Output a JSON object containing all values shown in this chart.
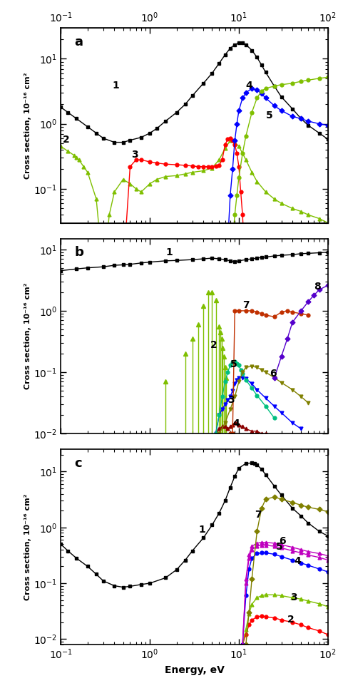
{
  "xlabel": "Energy, eV",
  "ylabel": "Cross section, 10⁻¹⁶ cm²",
  "xlim": [
    0.1,
    100
  ],
  "panel_a": {
    "ylim": [
      0.03,
      30
    ],
    "label": "a",
    "series": [
      {
        "id": "1",
        "color": "black",
        "marker": "s",
        "x": [
          0.1,
          0.12,
          0.15,
          0.2,
          0.25,
          0.3,
          0.4,
          0.5,
          0.6,
          0.8,
          1.0,
          1.2,
          1.5,
          2.0,
          2.5,
          3.0,
          4.0,
          5.0,
          6.0,
          7.0,
          8.0,
          9.0,
          10.0,
          11.0,
          12.0,
          14.0,
          16.0,
          18.0,
          20.0,
          25.0,
          30.0,
          40.0,
          50.0,
          60.0,
          80.0,
          100.0
        ],
        "y": [
          1.8,
          1.5,
          1.2,
          0.9,
          0.72,
          0.6,
          0.52,
          0.52,
          0.56,
          0.62,
          0.72,
          0.85,
          1.1,
          1.5,
          2.0,
          2.7,
          4.2,
          6.0,
          8.5,
          11.5,
          14.5,
          16.5,
          17.5,
          17.5,
          16.5,
          13.5,
          10.5,
          8.0,
          6.2,
          3.8,
          2.6,
          1.7,
          1.2,
          0.95,
          0.72,
          0.58
        ]
      },
      {
        "id": "2",
        "color": "#7FBF00",
        "marker": "^",
        "x": [
          0.1,
          0.12,
          0.14,
          0.15,
          0.16,
          0.18,
          0.2,
          0.25,
          0.3,
          0.35,
          0.4,
          0.5,
          0.6,
          0.7,
          0.8,
          1.0,
          1.2,
          1.5,
          2.0,
          2.5,
          3.0,
          4.0,
          5.0,
          6.0,
          7.0,
          8.0,
          9.0,
          10.0,
          12.0,
          14.0,
          16.0,
          20.0,
          25.0,
          30.0,
          40.0,
          50.0,
          60.0,
          80.0,
          100.0
        ],
        "y": [
          0.45,
          0.38,
          0.33,
          0.3,
          0.28,
          0.22,
          0.18,
          0.07,
          0.005,
          0.04,
          0.09,
          0.14,
          0.12,
          0.1,
          0.09,
          0.12,
          0.14,
          0.155,
          0.16,
          0.17,
          0.18,
          0.19,
          0.21,
          0.28,
          0.42,
          0.55,
          0.52,
          0.45,
          0.28,
          0.18,
          0.13,
          0.09,
          0.07,
          0.06,
          0.05,
          0.045,
          0.04,
          0.035,
          0.03
        ]
      },
      {
        "id": "3",
        "color": "red",
        "marker": "o",
        "x": [
          0.5,
          0.6,
          0.7,
          0.8,
          1.0,
          1.2,
          1.5,
          2.0,
          2.5,
          3.0,
          3.5,
          4.0,
          4.5,
          5.0,
          5.5,
          6.0,
          6.5,
          7.0,
          7.5,
          8.0,
          8.5,
          9.0,
          9.5,
          10.0,
          10.5,
          11.0,
          11.5,
          12.0
        ],
        "y": [
          0.005,
          0.22,
          0.28,
          0.28,
          0.26,
          0.25,
          0.24,
          0.235,
          0.23,
          0.225,
          0.22,
          0.22,
          0.22,
          0.22,
          0.225,
          0.23,
          0.28,
          0.48,
          0.58,
          0.6,
          0.56,
          0.48,
          0.35,
          0.22,
          0.09,
          0.04,
          0.012,
          0.005
        ]
      },
      {
        "id": "4",
        "color": "blue",
        "marker": "D",
        "x": [
          7.0,
          7.5,
          8.0,
          8.5,
          9.0,
          9.5,
          10.0,
          11.0,
          12.0,
          14.0,
          16.0,
          18.0,
          20.0,
          25.0,
          30.0,
          40.0,
          50.0,
          60.0,
          80.0,
          100.0
        ],
        "y": [
          0.005,
          0.015,
          0.08,
          0.2,
          0.55,
          1.0,
          1.6,
          2.5,
          3.0,
          3.5,
          3.3,
          2.9,
          2.5,
          1.9,
          1.6,
          1.3,
          1.2,
          1.1,
          1.0,
          0.95
        ]
      },
      {
        "id": "5",
        "color": "#7FBF00",
        "marker": "o",
        "x": [
          8.0,
          8.5,
          9.0,
          9.5,
          10.0,
          11.0,
          12.0,
          14.0,
          16.0,
          18.0,
          20.0,
          25.0,
          30.0,
          40.0,
          50.0,
          60.0,
          80.0,
          100.0
        ],
        "y": [
          0.005,
          0.015,
          0.04,
          0.08,
          0.15,
          0.35,
          0.65,
          1.5,
          2.5,
          3.2,
          3.5,
          3.8,
          4.0,
          4.2,
          4.5,
          4.7,
          5.0,
          5.2
        ]
      }
    ]
  },
  "panel_b": {
    "ylim": [
      0.01,
      15
    ],
    "label": "b",
    "series": [
      {
        "id": "1",
        "color": "black",
        "marker": "s",
        "x": [
          0.1,
          0.15,
          0.2,
          0.3,
          0.4,
          0.5,
          0.6,
          0.8,
          1.0,
          1.5,
          2.0,
          3.0,
          4.0,
          5.0,
          6.0,
          7.0,
          8.0,
          9.0,
          10.0,
          12.0,
          14.0,
          16.0,
          18.0,
          20.0,
          25.0,
          30.0,
          40.0,
          50.0,
          60.0,
          80.0,
          100.0
        ],
        "y": [
          4.5,
          4.8,
          5.0,
          5.2,
          5.5,
          5.6,
          5.7,
          6.0,
          6.2,
          6.5,
          6.6,
          6.8,
          7.0,
          7.2,
          7.0,
          6.8,
          6.5,
          6.3,
          6.5,
          6.8,
          7.0,
          7.2,
          7.4,
          7.5,
          7.8,
          8.0,
          8.2,
          8.5,
          8.6,
          8.8,
          9.0
        ]
      },
      {
        "id": "2",
        "color": "#7FBF00",
        "marker": "^",
        "spike": true,
        "x": [
          1.5,
          2.5,
          3.0,
          3.5,
          4.0,
          4.5,
          5.0,
          5.5,
          6.0,
          6.2,
          6.4,
          6.6,
          6.8,
          7.0,
          7.2
        ],
        "y": [
          0.07,
          0.2,
          0.35,
          0.6,
          1.2,
          2.0,
          2.0,
          1.5,
          0.55,
          0.45,
          0.35,
          0.25,
          0.18,
          0.12,
          0.08
        ]
      },
      {
        "id": "3",
        "color": "blue",
        "marker": "v",
        "x": [
          5.5,
          6.0,
          6.5,
          7.0,
          7.5,
          8.0,
          8.5,
          9.0,
          9.5,
          10.0,
          11.0,
          12.0,
          14.0,
          16.0,
          20.0,
          25.0,
          30.0,
          40.0,
          50.0
        ],
        "y": [
          0.01,
          0.02,
          0.025,
          0.03,
          0.035,
          0.04,
          0.05,
          0.065,
          0.075,
          0.082,
          0.082,
          0.078,
          0.065,
          0.052,
          0.038,
          0.028,
          0.022,
          0.015,
          0.012
        ]
      },
      {
        "id": "4",
        "color": "#8B0000",
        "marker": "^",
        "x": [
          5.5,
          6.0,
          6.5,
          7.0,
          7.5,
          8.0,
          8.5,
          9.0,
          9.5,
          10.0,
          11.0,
          12.0,
          14.0,
          16.0,
          18.0,
          20.0
        ],
        "y": [
          0.01,
          0.012,
          0.013,
          0.013,
          0.012,
          0.013,
          0.014,
          0.015,
          0.015,
          0.014,
          0.013,
          0.012,
          0.011,
          0.011,
          0.01,
          0.01
        ]
      },
      {
        "id": "5",
        "color": "#00BF80",
        "marker": "o",
        "x": [
          5.5,
          6.0,
          6.5,
          7.0,
          7.5,
          8.0,
          8.5,
          9.0,
          9.5,
          10.0,
          10.5,
          11.0,
          12.0,
          14.0,
          16.0,
          20.0,
          25.0
        ],
        "y": [
          0.01,
          0.02,
          0.04,
          0.07,
          0.1,
          0.13,
          0.145,
          0.148,
          0.14,
          0.13,
          0.11,
          0.095,
          0.075,
          0.055,
          0.042,
          0.028,
          0.018
        ]
      },
      {
        "id": "6",
        "color": "#808000",
        "marker": "v",
        "x": [
          6.0,
          7.0,
          8.0,
          9.0,
          10.0,
          11.0,
          12.0,
          14.0,
          16.0,
          18.0,
          20.0,
          25.0,
          30.0,
          40.0,
          50.0,
          60.0
        ],
        "y": [
          0.01,
          0.015,
          0.025,
          0.04,
          0.07,
          0.1,
          0.12,
          0.125,
          0.12,
          0.11,
          0.1,
          0.082,
          0.068,
          0.052,
          0.04,
          0.032
        ]
      },
      {
        "id": "7",
        "color": "#C03000",
        "marker": "o",
        "x": [
          8.0,
          8.5,
          9.0,
          10.0,
          12.0,
          14.0,
          16.0,
          18.0,
          20.0,
          25.0,
          30.0,
          35.0,
          40.0,
          50.0,
          60.0
        ],
        "y": [
          0.01,
          0.01,
          1.0,
          1.0,
          1.0,
          1.0,
          0.95,
          0.9,
          0.85,
          0.8,
          0.95,
          1.0,
          0.95,
          0.9,
          0.85
        ]
      },
      {
        "id": "8",
        "color": "#5500CC",
        "marker": "D",
        "x": [
          25.0,
          30.0,
          35.0,
          40.0,
          50.0,
          60.0,
          70.0,
          80.0,
          100.0
        ],
        "y": [
          0.08,
          0.18,
          0.35,
          0.65,
          1.0,
          1.4,
          1.8,
          2.2,
          2.6
        ]
      }
    ]
  },
  "panel_c": {
    "ylim": [
      0.008,
      25
    ],
    "label": "c",
    "series": [
      {
        "id": "1",
        "color": "black",
        "marker": "s",
        "x": [
          0.1,
          0.12,
          0.15,
          0.2,
          0.25,
          0.3,
          0.4,
          0.5,
          0.6,
          0.8,
          1.0,
          1.5,
          2.0,
          2.5,
          3.0,
          4.0,
          5.0,
          6.0,
          7.0,
          8.0,
          9.0,
          10.0,
          12.0,
          14.0,
          15.0,
          16.0,
          18.0,
          20.0,
          25.0,
          30.0,
          40.0,
          50.0,
          60.0,
          80.0,
          100.0
        ],
        "y": [
          0.5,
          0.38,
          0.28,
          0.2,
          0.145,
          0.11,
          0.09,
          0.085,
          0.088,
          0.095,
          0.1,
          0.125,
          0.175,
          0.26,
          0.38,
          0.65,
          1.1,
          1.8,
          3.0,
          5.2,
          8.2,
          11.5,
          14.0,
          14.2,
          14.0,
          13.2,
          11.0,
          8.8,
          5.5,
          3.8,
          2.2,
          1.6,
          1.2,
          0.85,
          0.7
        ]
      },
      {
        "id": "2",
        "color": "red",
        "marker": "o",
        "x": [
          11.0,
          12.0,
          13.0,
          14.0,
          16.0,
          18.0,
          20.0,
          25.0,
          30.0,
          40.0,
          50.0,
          60.0,
          80.0,
          100.0
        ],
        "y": [
          0.008,
          0.012,
          0.018,
          0.022,
          0.025,
          0.026,
          0.025,
          0.024,
          0.022,
          0.02,
          0.018,
          0.016,
          0.014,
          0.012
        ]
      },
      {
        "id": "3",
        "color": "#7FBF00",
        "marker": "^",
        "x": [
          11.0,
          12.0,
          13.0,
          14.0,
          16.0,
          18.0,
          20.0,
          25.0,
          30.0,
          40.0,
          50.0,
          60.0,
          80.0,
          100.0
        ],
        "y": [
          0.008,
          0.015,
          0.028,
          0.042,
          0.055,
          0.06,
          0.062,
          0.062,
          0.06,
          0.055,
          0.052,
          0.048,
          0.043,
          0.038
        ]
      },
      {
        "id": "4",
        "color": "blue",
        "marker": "o",
        "x": [
          11.0,
          12.0,
          13.0,
          14.0,
          16.0,
          18.0,
          20.0,
          25.0,
          30.0,
          40.0,
          50.0,
          60.0,
          80.0,
          100.0
        ],
        "y": [
          0.008,
          0.06,
          0.18,
          0.28,
          0.34,
          0.35,
          0.35,
          0.33,
          0.3,
          0.26,
          0.23,
          0.21,
          0.18,
          0.16
        ]
      },
      {
        "id": "5",
        "color": "#BF00BF",
        "marker": "^",
        "x": [
          11.0,
          12.0,
          13.0,
          14.0,
          16.0,
          18.0,
          20.0,
          25.0,
          30.0,
          40.0,
          50.0,
          60.0,
          80.0,
          100.0
        ],
        "y": [
          0.008,
          0.1,
          0.28,
          0.4,
          0.46,
          0.48,
          0.48,
          0.46,
          0.43,
          0.38,
          0.35,
          0.32,
          0.29,
          0.26
        ]
      },
      {
        "id": "6",
        "color": "#BF00BF",
        "marker": "^",
        "x": [
          11.0,
          12.0,
          13.0,
          14.0,
          16.0,
          18.0,
          20.0,
          25.0,
          30.0,
          40.0,
          50.0,
          60.0,
          80.0,
          100.0
        ],
        "y": [
          0.008,
          0.12,
          0.32,
          0.46,
          0.52,
          0.54,
          0.54,
          0.52,
          0.49,
          0.44,
          0.4,
          0.37,
          0.34,
          0.31
        ]
      },
      {
        "id": "7",
        "color": "#808000",
        "marker": "D",
        "x": [
          12.0,
          13.0,
          14.0,
          16.0,
          18.0,
          20.0,
          25.0,
          30.0,
          40.0,
          50.0,
          60.0,
          80.0,
          100.0
        ],
        "y": [
          0.008,
          0.03,
          0.12,
          0.85,
          2.2,
          3.2,
          3.5,
          3.2,
          2.8,
          2.5,
          2.3,
          2.1,
          1.9
        ]
      }
    ]
  }
}
